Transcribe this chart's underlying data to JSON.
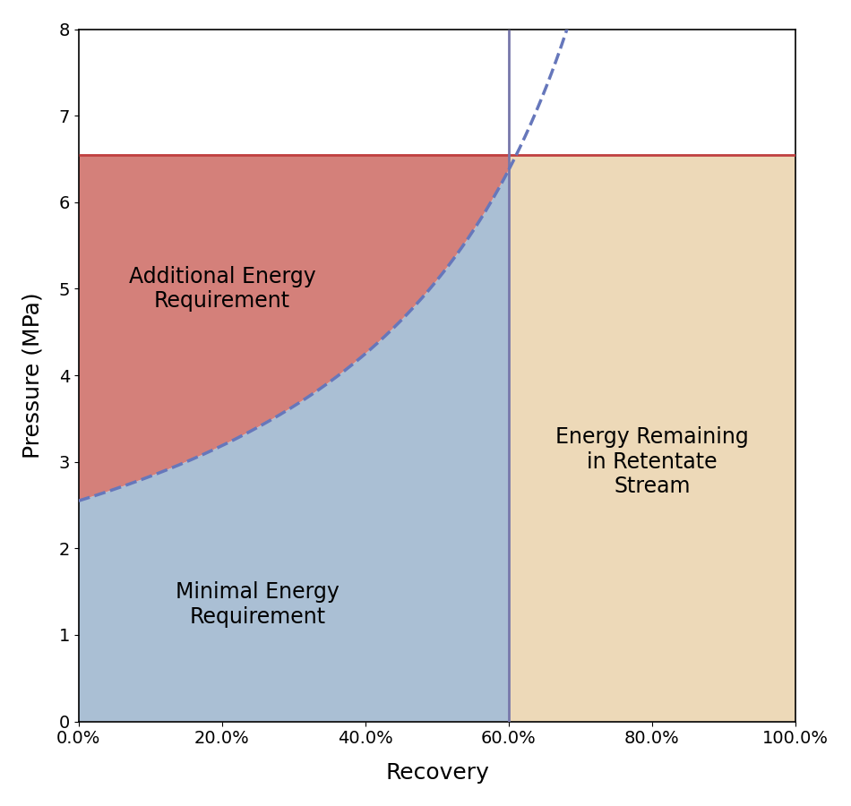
{
  "title": "",
  "xlabel": "Recovery",
  "ylabel": "Pressure (MPa)",
  "xlim": [
    0.0,
    1.0
  ],
  "ylim": [
    0.0,
    8.0
  ],
  "xticks": [
    0.0,
    0.2,
    0.4,
    0.6,
    0.8,
    1.0
  ],
  "xtick_labels": [
    "0.0%",
    "20.0%",
    "40.0%",
    "60.0%",
    "80.0%",
    "100.0%"
  ],
  "yticks": [
    0,
    1,
    2,
    3,
    4,
    5,
    6,
    7,
    8
  ],
  "operating_pressure": 6.55,
  "recovery_cutoff": 0.6,
  "pi_0": 2.55,
  "color_minimal": "#AABFD4",
  "color_additional": "#D4807A",
  "color_retentate": "#EDD9B8",
  "color_curve": "#6677BB",
  "color_hline": "#C04040",
  "color_vline": "#7777AA",
  "label_minimal": "Minimal Energy\nRequirement",
  "label_additional": "Additional Energy\nRequirement",
  "label_retentate": "Energy Remaining\nin Retentate\nStream",
  "fontsize_labels": 18,
  "fontsize_ticks": 14,
  "fontsize_annotations": 17
}
